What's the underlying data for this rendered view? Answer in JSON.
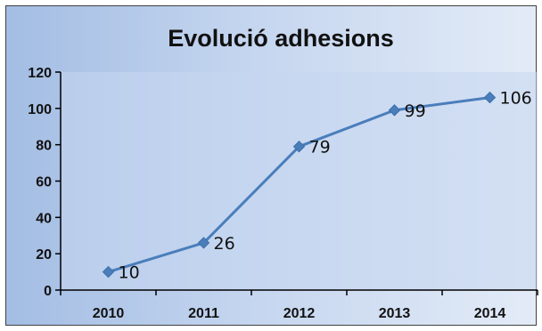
{
  "chart_data": {
    "type": "line",
    "title": "Evolució adhesions",
    "xlabel": "",
    "ylabel": "",
    "categories": [
      "2010",
      "2011",
      "2012",
      "2013",
      "2014"
    ],
    "series": [
      {
        "values": [
          10,
          26,
          79,
          99,
          106
        ]
      }
    ],
    "data_labels": [
      "10",
      "26",
      "79",
      "99",
      "106"
    ],
    "y_ticks": [
      "0",
      "20",
      "40",
      "60",
      "80",
      "100",
      "120"
    ],
    "ylim": [
      0,
      120
    ],
    "grid": false,
    "legend": "none",
    "marker": "diamond",
    "colors": {
      "series": "#4a7ebb",
      "plot_area": "#c6d7f0",
      "background_start": "#a3bde3",
      "background_end": "#e3ebf7",
      "axis": "#000000",
      "border": "#404040"
    }
  }
}
